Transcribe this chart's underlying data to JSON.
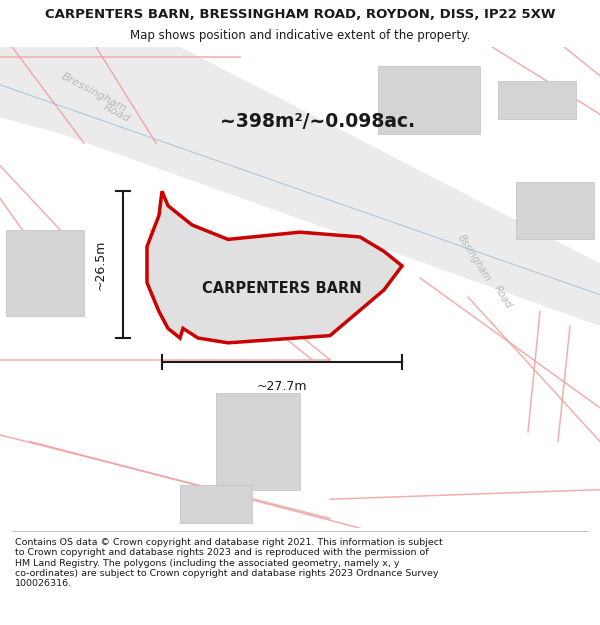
{
  "title_line1": "CARPENTERS BARN, BRESSINGHAM ROAD, ROYDON, DISS, IP22 5XW",
  "title_line2": "Map shows position and indicative extent of the property.",
  "footer_text": "Contains OS data © Crown copyright and database right 2021. This information is subject\nto Crown copyright and database rights 2023 and is reproduced with the permission of\nHM Land Registry. The polygons (including the associated geometry, namely x, y\nco-ordinates) are subject to Crown copyright and database rights 2023 Ordnance Survey\n100026316.",
  "area_label": "~398m²/~0.098ac.",
  "property_label": "CARPENTERS BARN",
  "dim_width": "~27.7m",
  "dim_height": "~26.5m",
  "bg_color": "#ffffff",
  "road_bg_color": "#dcdcdc",
  "road_label_color": "#b8b8b8",
  "property_fill": "#e0e0e0",
  "property_edge": "#cc0000",
  "road_line_color": "#f0a0a0",
  "dim_line_color": "#1a1a1a",
  "title_color": "#1a1a1a",
  "label_color": "#1a1a1a",
  "building_fill": "#d4d4d4",
  "building_edge": "#c0c0c0",
  "blue_line_color": "#90b8d8"
}
